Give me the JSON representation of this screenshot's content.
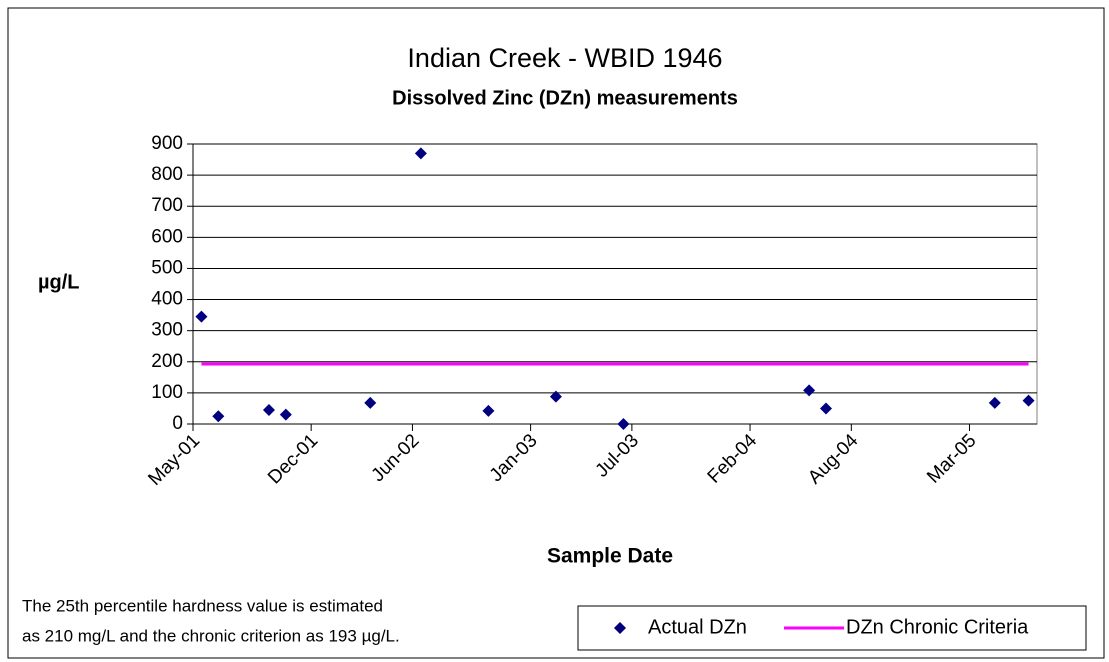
{
  "chart_data": {
    "type": "scatter",
    "title": "Indian Creek - WBID 1946",
    "subtitle": "Dissolved Zinc (DZn) measurements",
    "y_label": "µg/L",
    "x_label": "Sample Date",
    "notes": [
      "The 25th percentile hardness value is estimated",
      "as 210 mg/L and the chronic criterion as 193 µg/L."
    ],
    "xlim": [
      "2001-05",
      "2005-07"
    ],
    "xticks": [
      "May-01",
      "Dec-01",
      "Jun-02",
      "Jan-03",
      "Jul-03",
      "Feb-04",
      "Aug-04",
      "Mar-05"
    ],
    "xtick_dates": [
      "2001-05",
      "2001-12",
      "2002-06",
      "2003-01",
      "2003-07",
      "2004-02",
      "2004-08",
      "2005-03"
    ],
    "ylim": [
      0,
      900
    ],
    "yticks": [
      0,
      100,
      200,
      300,
      400,
      500,
      600,
      700,
      800,
      900
    ],
    "grid": true,
    "legend": "bottom-right",
    "series": [
      {
        "name": "Actual DZn",
        "color": "#000080",
        "marker": "diamond",
        "x": [
          "2001-05",
          "2001-06",
          "2001-09",
          "2001-10",
          "2002-03",
          "2002-06",
          "2002-10",
          "2003-02",
          "2003-06",
          "2004-05",
          "2004-06",
          "2005-04",
          "2005-06"
        ],
        "values": [
          345,
          25,
          45,
          30,
          68,
          870,
          42,
          88,
          0,
          108,
          50,
          68,
          75
        ]
      },
      {
        "name": "DZn Chronic Criteria",
        "color": "#ff00ff",
        "marker": "line",
        "x": [
          "2001-05",
          "2005-06"
        ],
        "values": [
          193,
          193
        ]
      }
    ]
  }
}
